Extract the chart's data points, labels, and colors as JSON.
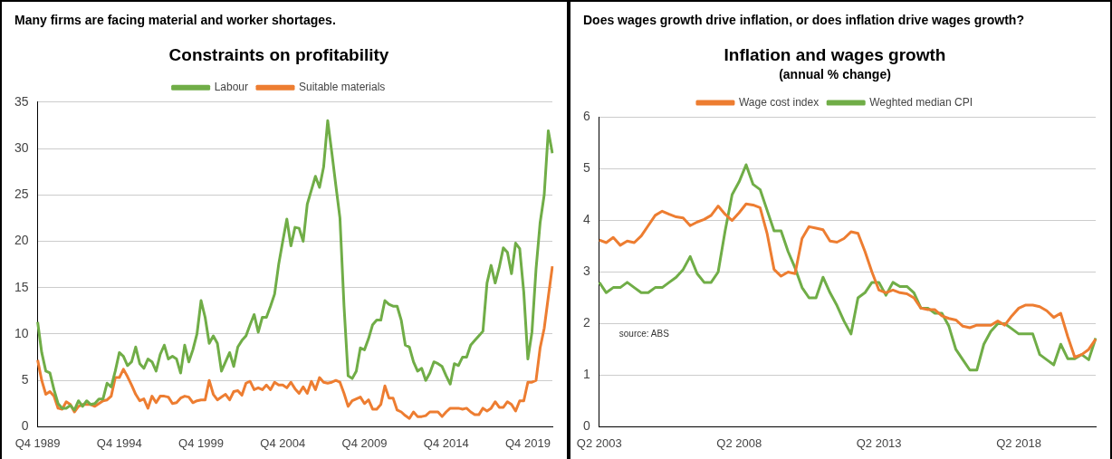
{
  "chart_data": [
    {
      "type": "line",
      "title": "Constraints on profitability",
      "annotations": [
        "Many firms are facing material and worker shortages."
      ],
      "categories": [
        "Q4 1989",
        null,
        null,
        null,
        null,
        null,
        null,
        null,
        null,
        null,
        null,
        null,
        null,
        null,
        null,
        null,
        null,
        null,
        null,
        null,
        "Q4 1994",
        null,
        null,
        null,
        null,
        null,
        null,
        null,
        null,
        null,
        null,
        null,
        null,
        null,
        null,
        null,
        null,
        null,
        null,
        null,
        "Q4 1999",
        null,
        null,
        null,
        null,
        null,
        null,
        null,
        null,
        null,
        null,
        null,
        null,
        null,
        null,
        null,
        null,
        null,
        null,
        null,
        "Q4 2004",
        null,
        null,
        null,
        null,
        null,
        null,
        null,
        null,
        null,
        null,
        null,
        null,
        null,
        null,
        null,
        null,
        null,
        null,
        null,
        "Q4 2009",
        null,
        null,
        null,
        null,
        null,
        null,
        null,
        null,
        null,
        null,
        null,
        null,
        null,
        null,
        null,
        null,
        null,
        null,
        null,
        "Q4 2014",
        null,
        null,
        null,
        null,
        null,
        null,
        null,
        null,
        null,
        null,
        null,
        null,
        null,
        null,
        null,
        null,
        null,
        null,
        null,
        "Q4 2019",
        null,
        null,
        null,
        null,
        null,
        null
      ],
      "series": [
        {
          "name": "Labour",
          "color": "#70ad47",
          "values": [
            11.3,
            8,
            6,
            5.8,
            4,
            2.5,
            2,
            2,
            2.3,
            1.8,
            2.8,
            2.2,
            2.8,
            2.4,
            2.5,
            3,
            3,
            4.7,
            4.3,
            6,
            8,
            7.6,
            6.6,
            7,
            8.6,
            6.8,
            6.3,
            7.3,
            7,
            6,
            7.8,
            8.8,
            7.3,
            7.6,
            7.3,
            5.8,
            8.8,
            7,
            8.3,
            10,
            13.6,
            11.8,
            9,
            9.8,
            9,
            6,
            7,
            8,
            6.5,
            8.6,
            9.3,
            9.8,
            11,
            12.1,
            10.2,
            11.8,
            11.8,
            13,
            14.3,
            17.5,
            20,
            22.4,
            19.5,
            21.5,
            21.4,
            20,
            24,
            25.5,
            27,
            25.8,
            28,
            33,
            29.6,
            26,
            22.5,
            13,
            5.5,
            5.2,
            6,
            8.5,
            8.3,
            9.5,
            11,
            11.5,
            11.5,
            13.6,
            13.2,
            13,
            13,
            11.5,
            8.8,
            8.6,
            7,
            6,
            6.3,
            5,
            5.8,
            7,
            6.8,
            6.5,
            5.5,
            4.6,
            6.8,
            6.6,
            7.5,
            7.5,
            8.8,
            9.3,
            9.8,
            10.3,
            15.5,
            17.4,
            15.5,
            17.2,
            19.3,
            18.8,
            16.5,
            19.8,
            19.2,
            14.5,
            7.3,
            10.2,
            17,
            22,
            25,
            31.9,
            29.5
          ]
        },
        {
          "name": "Suitable materials",
          "color": "#ed7d31",
          "values": [
            7.2,
            5,
            3.5,
            3.8,
            3.3,
            2,
            1.9,
            2.7,
            2.4,
            1.6,
            2.2,
            2.4,
            2.4,
            2.4,
            2.2,
            2.5,
            2.8,
            2.9,
            3.3,
            5.3,
            5.3,
            6.2,
            5.4,
            4.5,
            3.5,
            2.8,
            3,
            2,
            3.3,
            2.6,
            3.3,
            3.3,
            3.2,
            2.5,
            2.6,
            3.1,
            3.3,
            3.2,
            2.6,
            2.8,
            2.9,
            2.9,
            5,
            3.5,
            2.9,
            3.2,
            3.5,
            2.9,
            3.8,
            3.9,
            3.4,
            4.7,
            4.9,
            4,
            4.2,
            4,
            4.5,
            4,
            4.8,
            4.5,
            4.5,
            4.2,
            4.8,
            4.1,
            3.6,
            4.3,
            3.6,
            4.9,
            4,
            5.3,
            4.8,
            4.7,
            4.8,
            5,
            4.8,
            3.6,
            2.2,
            2.8,
            3,
            3.2,
            2.5,
            2.9,
            1.9,
            1.9,
            2.4,
            4.4,
            3.1,
            3.1,
            1.8,
            1.6,
            1.2,
            0.9,
            1.6,
            1.1,
            1.1,
            1.2,
            1.6,
            1.6,
            1.6,
            1.1,
            1.6,
            2,
            2,
            2,
            1.9,
            2,
            1.6,
            1.3,
            1.3,
            2,
            1.7,
            2,
            2.7,
            2.1,
            2.1,
            2.7,
            2.4,
            1.7,
            2.8,
            2.8,
            4.8,
            4.8,
            5,
            8.5,
            10.6,
            14,
            17.3
          ]
        }
      ],
      "ylim": [
        0,
        35
      ],
      "yticks": [
        0,
        5,
        10,
        15,
        20,
        25,
        30,
        35
      ],
      "grid": "y",
      "legend": "top"
    },
    {
      "type": "line",
      "title": "Inflation and wages growth",
      "subtitle": "(annual % change)",
      "annotations": [
        "Does wages growth drive inflation, or does inflation drive wages growth?",
        "source: ABS"
      ],
      "categories": [
        "Q2 2003",
        null,
        null,
        null,
        null,
        null,
        null,
        null,
        null,
        null,
        null,
        null,
        null,
        null,
        null,
        null,
        null,
        null,
        null,
        null,
        "Q2 2008",
        null,
        null,
        null,
        null,
        null,
        null,
        null,
        null,
        null,
        null,
        null,
        null,
        null,
        null,
        null,
        null,
        null,
        null,
        null,
        "Q2 2013",
        null,
        null,
        null,
        null,
        null,
        null,
        null,
        null,
        null,
        null,
        null,
        null,
        null,
        null,
        null,
        null,
        null,
        null,
        null,
        "Q2 2018",
        null,
        null,
        null,
        null,
        null,
        null,
        null,
        null,
        null,
        null,
        null
      ],
      "series": [
        {
          "name": "Wage cost index",
          "color": "#ed7d31",
          "values": [
            3.62,
            3.57,
            3.67,
            3.52,
            3.6,
            3.57,
            3.7,
            3.9,
            4.1,
            4.18,
            4.12,
            4.07,
            4.05,
            3.9,
            3.97,
            4.02,
            4.1,
            4.28,
            4.12,
            4,
            4.15,
            4.32,
            4.3,
            4.25,
            3.75,
            3.05,
            2.92,
            3,
            2.97,
            3.65,
            3.88,
            3.85,
            3.82,
            3.6,
            3.58,
            3.65,
            3.78,
            3.75,
            3.4,
            3,
            2.65,
            2.6,
            2.65,
            2.6,
            2.58,
            2.5,
            2.3,
            2.27,
            2.27,
            2.15,
            2.1,
            2.07,
            1.95,
            1.92,
            1.97,
            1.97,
            1.97,
            2.05,
            1.97,
            2.15,
            2.3,
            2.36,
            2.36,
            2.33,
            2.25,
            2.12,
            2.2,
            1.75,
            1.35,
            1.4,
            1.5,
            1.7
          ]
        },
        {
          "name": "Weghted median CPI",
          "color": "#70ad47",
          "values": [
            2.8,
            2.6,
            2.7,
            2.7,
            2.8,
            2.7,
            2.6,
            2.6,
            2.7,
            2.7,
            2.8,
            2.9,
            3.05,
            3.3,
            2.97,
            2.8,
            2.8,
            3,
            3.8,
            4.5,
            4.75,
            5.08,
            4.7,
            4.6,
            4.2,
            3.8,
            3.8,
            3.4,
            3.08,
            2.7,
            2.5,
            2.5,
            2.9,
            2.6,
            2.35,
            2.05,
            1.8,
            2.5,
            2.6,
            2.8,
            2.8,
            2.55,
            2.8,
            2.72,
            2.72,
            2.6,
            2.3,
            2.3,
            2.2,
            2.2,
            1.95,
            1.5,
            1.3,
            1.1,
            1.1,
            1.6,
            1.85,
            2,
            2,
            1.9,
            1.8,
            1.8,
            1.8,
            1.4,
            1.3,
            1.2,
            1.6,
            1.32,
            1.32,
            1.4,
            1.3,
            1.72
          ]
        }
      ],
      "ylim": [
        0,
        6
      ],
      "yticks": [
        0,
        1,
        2,
        3,
        4,
        5,
        6
      ],
      "grid": "y",
      "legend": "top"
    }
  ]
}
